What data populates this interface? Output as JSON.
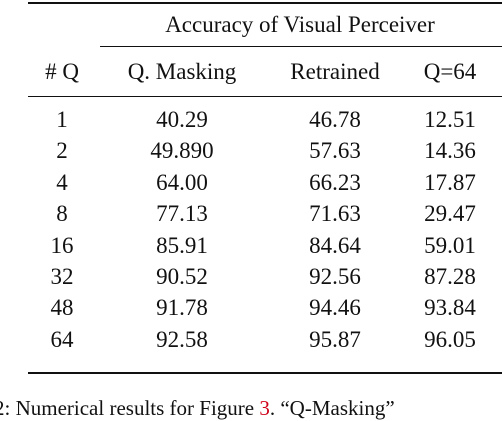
{
  "table": {
    "group_header": "Accuracy of Visual Perceiver",
    "columns": [
      "# Q",
      "Q. Masking",
      "Retrained",
      "Q=64"
    ],
    "rows": [
      [
        "1",
        "40.29",
        "46.78",
        "12.51"
      ],
      [
        "2",
        "49.890",
        "57.63",
        "14.36"
      ],
      [
        "4",
        "64.00",
        "66.23",
        "17.87"
      ],
      [
        "8",
        "77.13",
        "71.63",
        "29.47"
      ],
      [
        "16",
        "85.91",
        "84.64",
        "59.01"
      ],
      [
        "32",
        "90.52",
        "92.56",
        "87.28"
      ],
      [
        "48",
        "91.78",
        "94.46",
        "93.84"
      ],
      [
        "64",
        "92.58",
        "95.87",
        "96.05"
      ]
    ]
  },
  "caption": {
    "prefix": "2: Numerical results for Figure ",
    "ref": "3",
    "suffix": ". “Q-Masking”"
  }
}
